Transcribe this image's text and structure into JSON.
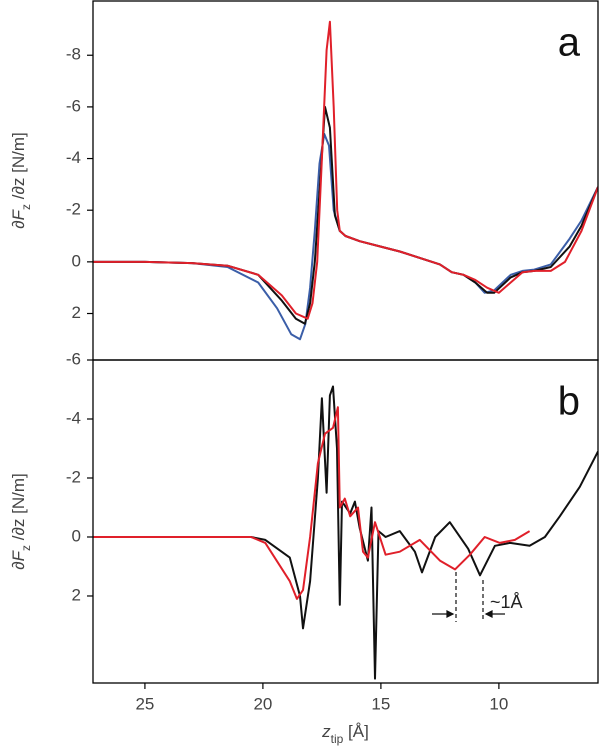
{
  "chart_data": [
    {
      "type": "line",
      "panel_label": "a",
      "ylabel": [
        "∂F",
        "z",
        " /∂z [N/m]"
      ],
      "xlim": [
        27.2,
        5.8
      ],
      "ylim": [
        3.8,
        -10.1
      ],
      "yticks": [
        -8,
        -6,
        -4,
        -2,
        0,
        2
      ],
      "series": [
        {
          "color": "#3b5ea8",
          "x": [
            27.2,
            25,
            23,
            21.5,
            20.2,
            19.4,
            18.8,
            18.43,
            18.2,
            18.0,
            17.8,
            17.6,
            17.4,
            17.2,
            17.0,
            16.74,
            16.5,
            15.9,
            14.2,
            12.5,
            12.0,
            11.5,
            11.0,
            10.6,
            10.2,
            9.5,
            9.0,
            8.5,
            7.8,
            7.0,
            6.5,
            5.8
          ],
          "values": [
            0,
            0,
            0.05,
            0.2,
            0.8,
            1.8,
            2.8,
            3.0,
            2.4,
            1.0,
            -1.2,
            -3.8,
            -4.95,
            -4.5,
            -2.0,
            -1.2,
            -1.0,
            -0.8,
            -0.4,
            0.1,
            0.4,
            0.5,
            0.8,
            1.2,
            1.1,
            0.5,
            0.35,
            0.3,
            0.1,
            -0.9,
            -1.6,
            -2.9
          ]
        },
        {
          "color": "#111111",
          "x": [
            27.2,
            25,
            23,
            21.5,
            20.2,
            19.2,
            18.6,
            18.22,
            18.0,
            17.8,
            17.58,
            17.37,
            17.16,
            16.95,
            16.74,
            16.5,
            15.9,
            14.2,
            12.5,
            12.0,
            11.5,
            11.0,
            10.5,
            10.2,
            9.5,
            9.0,
            8.5,
            7.8,
            7.0,
            6.5,
            5.8
          ],
          "values": [
            0,
            0,
            0.05,
            0.15,
            0.5,
            1.5,
            2.2,
            2.4,
            1.6,
            0,
            -3,
            -6.0,
            -5.2,
            -1.8,
            -1.2,
            -1.0,
            -0.8,
            -0.4,
            0.1,
            0.4,
            0.5,
            0.8,
            1.2,
            1.2,
            0.6,
            0.4,
            0.35,
            0.2,
            -0.6,
            -1.4,
            -2.9
          ]
        },
        {
          "color": "#e0202a",
          "x": [
            27.2,
            25,
            23,
            21.5,
            20.2,
            19.2,
            18.6,
            18.1,
            17.9,
            17.7,
            17.5,
            17.3,
            17.16,
            17.0,
            16.85,
            16.74,
            16.5,
            15.9,
            14.2,
            12.5,
            12.0,
            11.5,
            11.0,
            10.5,
            10.0,
            9.5,
            9.0,
            8.5,
            7.8,
            7.2,
            6.5,
            5.8
          ],
          "values": [
            0,
            0,
            0.05,
            0.15,
            0.5,
            1.3,
            2.0,
            2.2,
            1.6,
            0,
            -4,
            -8.2,
            -9.3,
            -6,
            -2,
            -1.2,
            -1.0,
            -0.8,
            -0.4,
            0.1,
            0.4,
            0.5,
            0.7,
            1.0,
            1.2,
            0.8,
            0.4,
            0.35,
            0.35,
            0,
            -1.2,
            -2.9
          ]
        }
      ]
    },
    {
      "type": "line",
      "panel_label": "b",
      "ylabel": [
        "∂F",
        "z",
        " /∂z [N/m]"
      ],
      "xlabel": [
        "z",
        "tip",
        " [Å]"
      ],
      "annotation": "~1Å",
      "xlim": [
        27.2,
        5.8
      ],
      "ylim": [
        4.95,
        -6.0
      ],
      "xticks": [
        25,
        20,
        15,
        10
      ],
      "yticks": [
        -6,
        -4,
        -2,
        0,
        2
      ],
      "series": [
        {
          "color": "#111111",
          "x": [
            27.2,
            25,
            22,
            20.5,
            19.9,
            18.86,
            18.43,
            18.3,
            18.0,
            17.67,
            17.5,
            17.3,
            17.16,
            17.03,
            16.86,
            16.74,
            16.65,
            16.3,
            16.1,
            15.9,
            15.55,
            15.4,
            15.25,
            15.1,
            14.8,
            14.2,
            13.56,
            13.26,
            12.7,
            12.08,
            11.3,
            10.8,
            10.17,
            9.53,
            8.7,
            8.05,
            7.42,
            6.57,
            5.8
          ],
          "values": [
            0,
            0,
            0,
            0,
            0.1,
            0.7,
            2.0,
            3.1,
            1.5,
            -2,
            -4.7,
            -1.5,
            -4.8,
            -5.1,
            -3,
            2.3,
            -1.2,
            -0.8,
            -1.2,
            -0.3,
            0.8,
            -1.0,
            4.8,
            -0.2,
            0,
            -0.2,
            0.5,
            1.2,
            0,
            -0.5,
            0.4,
            1.3,
            0.3,
            0.2,
            0.3,
            0,
            -0.7,
            -1.7,
            -2.9
          ]
        },
        {
          "color": "#e0202a",
          "x": [
            27.2,
            25,
            22,
            20.5,
            19.9,
            18.86,
            18.56,
            18.3,
            18.0,
            17.67,
            17.37,
            17.03,
            16.82,
            16.74,
            16.53,
            16.3,
            15.97,
            15.76,
            15.55,
            15.25,
            14.8,
            14.2,
            13.35,
            12.5,
            11.86,
            11.23,
            10.6,
            9.96,
            9.32,
            8.7
          ],
          "values": [
            0,
            0,
            0,
            0,
            0.2,
            1.5,
            2.1,
            1.8,
            0,
            -2.5,
            -3.5,
            -3.7,
            -4.4,
            -1.0,
            -1.3,
            -0.7,
            -1.0,
            0.5,
            0.7,
            -0.5,
            0.6,
            0.5,
            0.1,
            0.8,
            1.1,
            0.6,
            0,
            0.2,
            0.1,
            -0.2
          ]
        }
      ]
    }
  ]
}
